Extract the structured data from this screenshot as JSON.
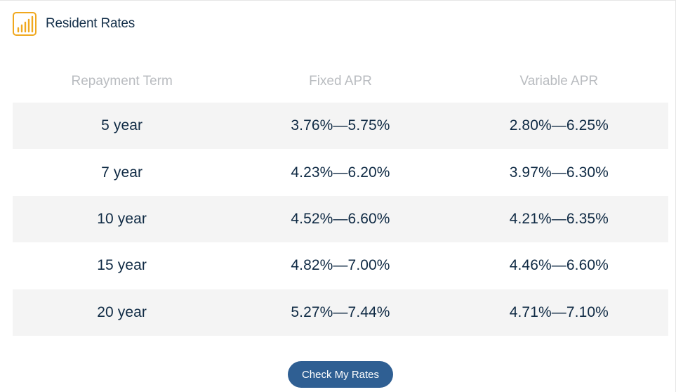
{
  "header": {
    "title": "Resident Rates",
    "icon": "bar-chart-icon",
    "icon_color": "#f0a81e"
  },
  "table": {
    "columns": [
      "Repayment Term",
      "Fixed APR",
      "Variable APR"
    ],
    "rows": [
      {
        "term": "5 year",
        "fixed": "3.76%—5.75%",
        "variable": "2.80%—6.25%"
      },
      {
        "term": "7 year",
        "fixed": "4.23%—6.20%",
        "variable": "3.97%—6.30%"
      },
      {
        "term": "10 year",
        "fixed": "4.52%—6.60%",
        "variable": "4.21%—6.35%"
      },
      {
        "term": "15 year",
        "fixed": "4.82%—7.00%",
        "variable": "4.46%—6.60%"
      },
      {
        "term": "20 year",
        "fixed": "5.27%—7.44%",
        "variable": "4.71%—7.10%"
      }
    ]
  },
  "cta": {
    "label": "Check My Rates",
    "color": "#2f5f93"
  }
}
